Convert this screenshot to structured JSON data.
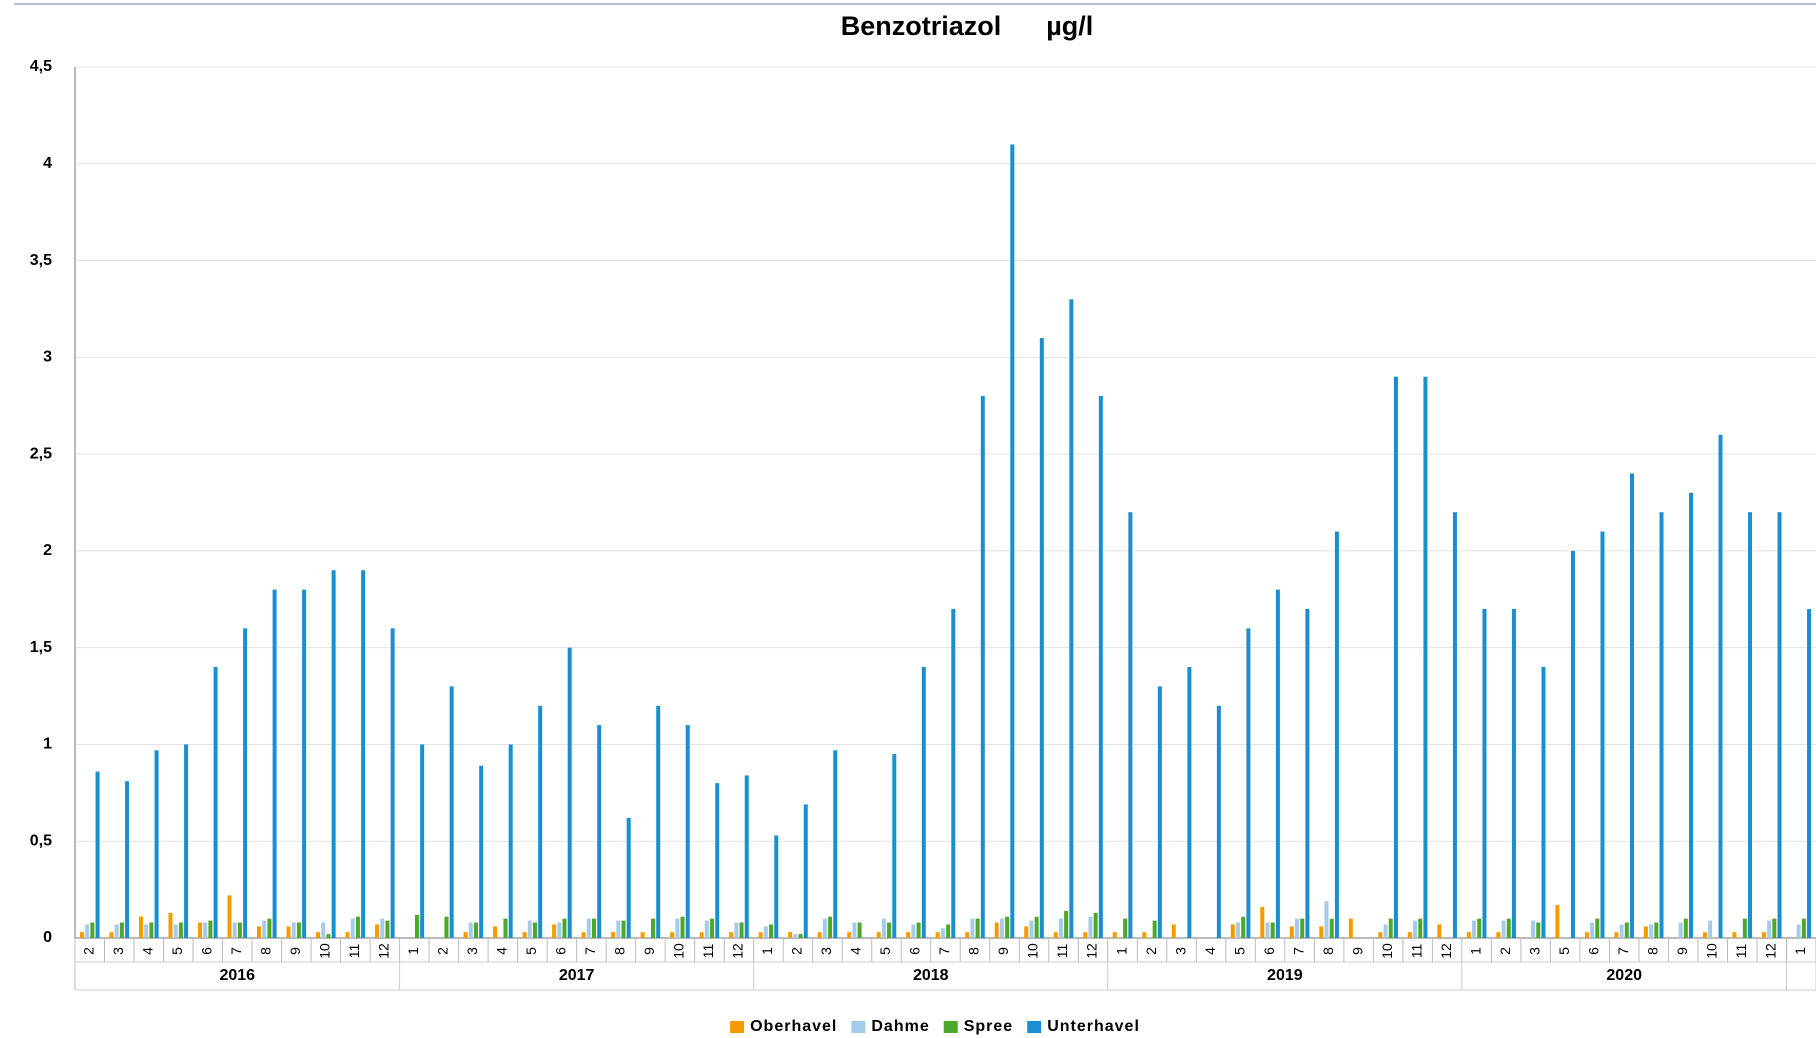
{
  "chart_data": {
    "type": "bar",
    "title": "Benzotriazol      µg/l",
    "categories": [
      "2",
      "3",
      "4",
      "5",
      "6",
      "7",
      "8",
      "9",
      "10",
      "11",
      "12",
      "1",
      "2",
      "3",
      "4",
      "5",
      "6",
      "7",
      "8",
      "9",
      "10",
      "11",
      "12",
      "1",
      "2",
      "3",
      "4",
      "5",
      "6",
      "7",
      "8",
      "9",
      "10",
      "11",
      "12",
      "1",
      "2",
      "3",
      "4",
      "5",
      "6",
      "7",
      "8",
      "9",
      "10",
      "11",
      "12",
      "1",
      "2",
      "3",
      "5",
      "6",
      "7",
      "8",
      "9",
      "10",
      "11",
      "12",
      "1"
    ],
    "year_groups": [
      {
        "name": "2016",
        "size": 11
      },
      {
        "name": "2017",
        "size": 12
      },
      {
        "name": "2018",
        "size": 12
      },
      {
        "name": "2019",
        "size": 12
      },
      {
        "name": "2020",
        "size": 11
      },
      {
        "name": null,
        "size": 1
      }
    ],
    "series": [
      {
        "name": "Oberhavel",
        "color": "#f59b00",
        "values": [
          0.03,
          0.03,
          0.11,
          0.13,
          0.08,
          0.22,
          0.06,
          0.06,
          0.03,
          0.03,
          0.07,
          null,
          null,
          0.03,
          0.06,
          0.03,
          0.07,
          0.03,
          0.03,
          0.03,
          0.03,
          0.03,
          0.03,
          0.03,
          0.03,
          0.03,
          0.03,
          0.03,
          0.03,
          0.03,
          0.03,
          0.08,
          0.06,
          0.03,
          0.03,
          0.03,
          0.03,
          0.07,
          null,
          0.07,
          0.16,
          0.06,
          0.06,
          0.1,
          0.03,
          0.03,
          0.07,
          0.03,
          0.03,
          null,
          0.17,
          0.03,
          0.03,
          0.06,
          null,
          0.03,
          0.03,
          0.03,
          null
        ]
      },
      {
        "name": "Dahme",
        "color": "#a6cbe8",
        "values": [
          0.07,
          0.07,
          0.07,
          0.07,
          0.08,
          0.08,
          0.09,
          0.08,
          0.08,
          0.1,
          0.1,
          null,
          null,
          0.08,
          null,
          0.09,
          0.08,
          0.1,
          0.09,
          null,
          0.1,
          0.09,
          0.08,
          0.06,
          0.02,
          0.1,
          0.08,
          0.1,
          0.07,
          0.05,
          0.1,
          0.1,
          0.09,
          0.1,
          0.11,
          null,
          null,
          null,
          null,
          0.08,
          0.08,
          0.1,
          0.19,
          null,
          0.07,
          0.09,
          null,
          0.09,
          0.09,
          0.09,
          null,
          0.08,
          0.07,
          0.07,
          0.08,
          0.09,
          null,
          0.09,
          0.07
        ]
      },
      {
        "name": "Spree",
        "color": "#4ca72a",
        "values": [
          0.08,
          0.08,
          0.08,
          0.08,
          0.09,
          0.08,
          0.1,
          0.08,
          0.02,
          0.11,
          0.09,
          0.12,
          0.11,
          0.08,
          0.1,
          0.08,
          0.1,
          0.1,
          0.09,
          0.1,
          0.11,
          0.1,
          0.08,
          0.07,
          0.02,
          0.11,
          0.08,
          0.08,
          0.08,
          0.07,
          0.1,
          0.11,
          0.11,
          0.14,
          0.13,
          0.1,
          0.09,
          null,
          null,
          0.11,
          0.08,
          0.1,
          0.1,
          null,
          0.1,
          0.1,
          null,
          0.1,
          0.1,
          0.08,
          null,
          0.1,
          0.08,
          0.08,
          0.1,
          null,
          0.1,
          0.1,
          0.1
        ]
      },
      {
        "name": "Unterhavel",
        "color": "#1a8fcf",
        "values": [
          0.86,
          0.81,
          0.97,
          1.0,
          1.4,
          1.6,
          1.8,
          1.8,
          1.9,
          1.9,
          1.6,
          1.0,
          1.3,
          0.89,
          1.0,
          1.2,
          1.5,
          1.1,
          0.62,
          1.2,
          1.1,
          0.8,
          0.84,
          0.53,
          0.69,
          0.97,
          null,
          0.95,
          1.4,
          1.7,
          2.8,
          4.1,
          3.1,
          3.3,
          2.8,
          2.2,
          1.3,
          1.4,
          1.2,
          1.6,
          1.8,
          1.7,
          2.1,
          null,
          2.9,
          2.9,
          2.2,
          1.7,
          1.7,
          1.4,
          2.0,
          2.1,
          2.4,
          2.2,
          2.3,
          2.6,
          2.2,
          2.2,
          1.7
        ]
      }
    ],
    "ylim": [
      0,
      4.5
    ],
    "yticks": [
      0,
      {
        "value": 0.5,
        "label": "0,5"
      },
      1,
      {
        "value": 1.5,
        "label": "1,5"
      },
      2,
      {
        "value": 2.5,
        "label": "2,5"
      },
      3,
      {
        "value": 3.5,
        "label": "3,5"
      },
      4,
      {
        "value": 4.5,
        "label": "4,5"
      }
    ],
    "grid": true,
    "legend": "bottom"
  }
}
